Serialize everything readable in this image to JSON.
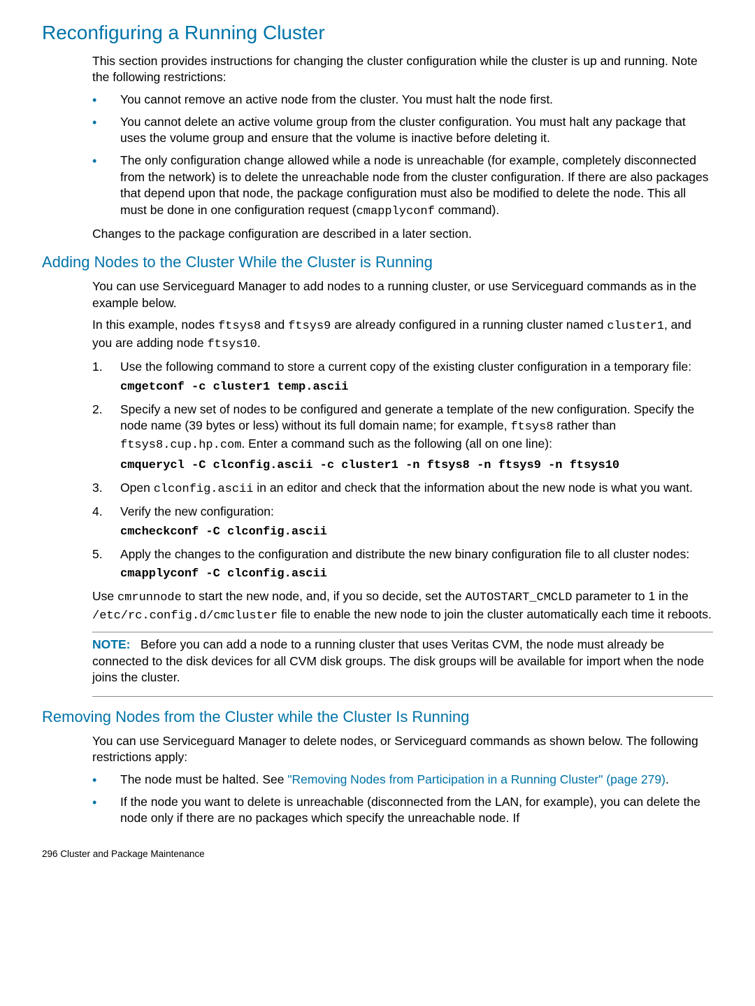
{
  "h1": "Reconfiguring a Running Cluster",
  "intro": "This section provides instructions for changing the cluster configuration while the cluster is up and running. Note the following restrictions:",
  "restrictions": [
    "You cannot remove an active node from the cluster. You must halt the node first.",
    "You cannot delete an active volume group from the cluster configuration. You must halt any package that uses the volume group and ensure that the volume is inactive before deleting it."
  ],
  "restriction3": {
    "pre": "The only configuration change allowed while a node is unreachable (for example, completely disconnected from the network) is to delete the unreachable node from the cluster configuration. If there are also packages that depend upon that node, the package configuration must also be modified to delete the node. This all must be done in one configuration request (",
    "cmd": "cmapplyconf",
    "post": " command)."
  },
  "changes_note": "Changes to the package configuration are described in a later section.",
  "h2a": "Adding Nodes to the Cluster While the Cluster is Running",
  "a_p1": "You can use Serviceguard Manager to add nodes to a running cluster, or use Serviceguard commands as in the example below.",
  "a_p2": {
    "t1": "In this example, nodes ",
    "c1": "ftsys8",
    "t2": " and ",
    "c2": "ftsys9",
    "t3": " are already configured in a running cluster named ",
    "c3": "cluster1",
    "t4": ", and you are adding node ",
    "c4": "ftsys10",
    "t5": "."
  },
  "steps": {
    "s1": {
      "text": "Use the following command to store a current copy of the existing cluster configuration in a temporary file:",
      "cmd": "cmgetconf -c cluster1 temp.ascii"
    },
    "s2": {
      "t1": "Specify a new set of nodes to be configured and generate a template of the new configuration. Specify the node name (39 bytes or less) without its full domain name; for example, ",
      "c1": "ftsys8",
      "t2": " rather than ",
      "c2": "ftsys8.cup.hp.com",
      "t3": ". Enter a command such as the following (all on one line):",
      "cmd": "cmquerycl -C clconfig.ascii -c cluster1 -n ftsys8 -n ftsys9 -n ftsys10"
    },
    "s3": {
      "t1": "Open ",
      "c1": "clconfig.ascii",
      "t2": " in an editor and check that the information about the new node is what you want."
    },
    "s4": {
      "text": "Verify the new configuration:",
      "cmd": "cmcheckconf -C clconfig.ascii"
    },
    "s5": {
      "text": "Apply the changes to the configuration and distribute the new binary configuration file to all cluster nodes:",
      "cmd": "cmapplyconf -C clconfig.ascii"
    }
  },
  "a_p3": {
    "t1": "Use ",
    "c1": "cmrunnode",
    "t2": " to start the new node, and, if you so decide, set the ",
    "c2": "AUTOSTART_CMCLD",
    "t3": " parameter to 1 in the ",
    "c3": "/etc/rc.config.d/cmcluster",
    "t4": " file to enable the new node to join the cluster automatically each time it reboots."
  },
  "note": {
    "label": "NOTE:",
    "body": "Before you can add a node to a running cluster that uses Veritas CVM, the node must already be connected to the disk devices for all CVM disk groups. The disk groups will be available for import when the node joins the cluster."
  },
  "h2b": "Removing Nodes from the Cluster while the Cluster Is Running",
  "b_p1": "You can use Serviceguard Manager to delete nodes, or Serviceguard commands as shown below. The following restrictions apply:",
  "b_bullets": {
    "b1": {
      "t1": "The node must be halted. See ",
      "link": "\"Removing Nodes from Participation in a Running Cluster\" (page 279)",
      "t2": "."
    },
    "b2": "If the node you want to delete is unreachable (disconnected from the LAN, for example), you can delete the node only if there are no packages which specify the unreachable node. If"
  },
  "footer": "296   Cluster and Package Maintenance"
}
